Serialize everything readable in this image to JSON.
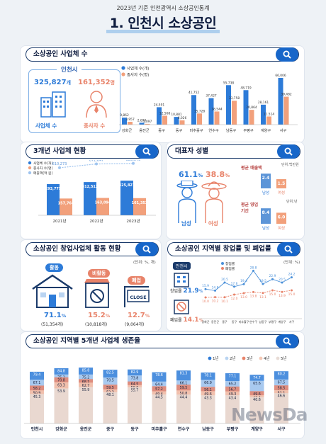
{
  "header": {
    "supertitle": "2023년 기준 인천광역시 소상공인통계",
    "title": "1. 인천시 소상공인"
  },
  "sec1": {
    "title": "소상공인 사업체 수",
    "city": "인천시",
    "biz_count": "325,827",
    "biz_unit": "개",
    "biz_label": "사업체 수",
    "emp_count": "161,352",
    "emp_unit": "명",
    "emp_label": "종사자 수"
  },
  "sec2": {
    "title": "3개년 사업체 현황"
  },
  "sec3": {
    "title": "대표자 성별",
    "male_pct": "61.1",
    "female_pct": "38.8",
    "pct_unit": "%",
    "male_label": "남성",
    "female_label": "여성",
    "unit": "단위:백만원",
    "sales_label": "평균 매출액",
    "sales_male": "2.4",
    "sales_female": "1.5",
    "period_label": "평균 영업 기간",
    "period_unit": "단위:년",
    "period_male": "8.4",
    "period_female": "6.0"
  },
  "sec4": {
    "title": "소상공인 창업사업체 활동 현황",
    "unit": "(단위: %, 개)",
    "items": [
      {
        "label": "활동",
        "pct": "71.1",
        "count": "(51,354개)"
      },
      {
        "label": "비활동",
        "pct": "15.2",
        "count": "(10,818개)"
      },
      {
        "label": "폐업",
        "pct": "12.7",
        "count": "(9,064개)"
      }
    ],
    "sign": "CLOSE",
    "pct_unit": "%"
  },
  "sec5": {
    "title": "소상공인 지역별 창업률 및 폐업률",
    "unit": "(단위: %)",
    "city": "인천시",
    "open_label": "창업률",
    "open_val": "21.9",
    "close_label": "폐업률",
    "close_val": "14.1",
    "pct_unit": "%"
  },
  "sec6": {
    "title": "소상공인 지역별 5개년 사업체 생존율"
  },
  "watermark": "NewsDa",
  "chart_data": [
    {
      "type": "bar",
      "id": "biz_by_region",
      "title": "",
      "categories": [
        "강화군",
        "옹진군",
        "중구",
        "동구",
        "미추홀구",
        "연수구",
        "남동구",
        "부평구",
        "계양구",
        "서구"
      ],
      "series": [
        {
          "name": "사업체 수(개)",
          "color": "#2d7bd8",
          "values": [
            9862,
            2690,
            24591,
            10881,
            41752,
            37427,
            55738,
            48719,
            28161,
            66006
          ]
        },
        {
          "name": "종사자 수(명)",
          "color": "#f2a07b",
          "values": [
            3957,
            1097,
            12568,
            6026,
            15728,
            18544,
            33758,
            20864,
            11514,
            39482
          ]
        }
      ]
    },
    {
      "type": "bar",
      "id": "three_year",
      "title": "",
      "categories": [
        "2021년",
        "2022년",
        "2023년"
      ],
      "series": [
        {
          "name": "사업체 수(개)",
          "color": "#2d7bd8",
          "values": [
            293775,
            312512,
            325827
          ]
        },
        {
          "name": "종사자 수(명)",
          "color": "#f2a07b",
          "values": [
            157764,
            163094,
            161352
          ]
        },
        {
          "name": "매출액(억 원)",
          "color": "#9fc4ef",
          "type": "line",
          "values": [
            610273,
            671847,
            680640
          ]
        }
      ]
    },
    {
      "type": "bar",
      "id": "sales",
      "title": "",
      "categories": [
        "남성",
        "여성"
      ],
      "values": [
        2.4,
        1.5
      ]
    },
    {
      "type": "bar",
      "id": "period",
      "title": "",
      "categories": [
        "남성",
        "여성"
      ],
      "values": [
        8.4,
        6.0
      ]
    },
    {
      "type": "line",
      "id": "open_close",
      "title": "",
      "categories": [
        "강화군",
        "옹진군",
        "중구",
        "동구",
        "미추홀구",
        "연수구",
        "남동구",
        "부평구",
        "계양구",
        "서구"
      ],
      "series": [
        {
          "name": "창업률",
          "color": "#4a90d9",
          "values": [
            15.9,
            14.8,
            20.5,
            17.6,
            19.4,
            28.8,
            19.5,
            22.9,
            20.5,
            24.2
          ]
        },
        {
          "name": "폐업률",
          "color": "#e8836a",
          "values": [
            10.0,
            10.2,
            10.1,
            12.0,
            13.0,
            13.8,
            13.1,
            15.0,
            13.9,
            15.0
          ]
        }
      ]
    },
    {
      "type": "bar",
      "id": "survival",
      "title": "",
      "categories": [
        "인천시",
        "강화군",
        "옹진군",
        "중구",
        "동구",
        "미추홀구",
        "연수구",
        "남동구",
        "부평구",
        "계양구",
        "서구"
      ],
      "series": [
        {
          "name": "1년",
          "color": "#2d7bd8",
          "values": [
            79.4,
            84.8,
            85.8,
            82.5,
            82.9,
            78.6,
            81.3,
            78.1,
            77.1,
            74.7,
            80.2
          ]
        },
        {
          "name": "2년",
          "color": "#b9d4f2",
          "values": [
            67.1,
            75.2,
            75.2,
            70.5,
            73.8,
            64.4,
            66.1,
            66.9,
            65.2,
            65.6,
            67.5
          ]
        },
        {
          "name": "3년",
          "color": "#e8836a",
          "values": [
            58.2,
            70.8,
            68.1,
            59.5,
            64.5,
            57.2,
            59.5,
            56.1,
            56.7,
            49.6,
            58.5
          ]
        },
        {
          "name": "4년",
          "color": "#f5c9b5",
          "values": [
            50.9,
            63.3,
            62.7,
            52.3,
            59.0,
            49.4,
            50.8,
            49.6,
            49.3,
            43.4,
            51.1
          ]
        },
        {
          "name": "5년",
          "color": "#e8dcd6",
          "values": [
            45.3,
            53.9,
            55.9,
            48.1,
            55.7,
            44.5,
            44.4,
            43.3,
            43.4,
            40.6,
            46.6
          ]
        }
      ]
    }
  ]
}
